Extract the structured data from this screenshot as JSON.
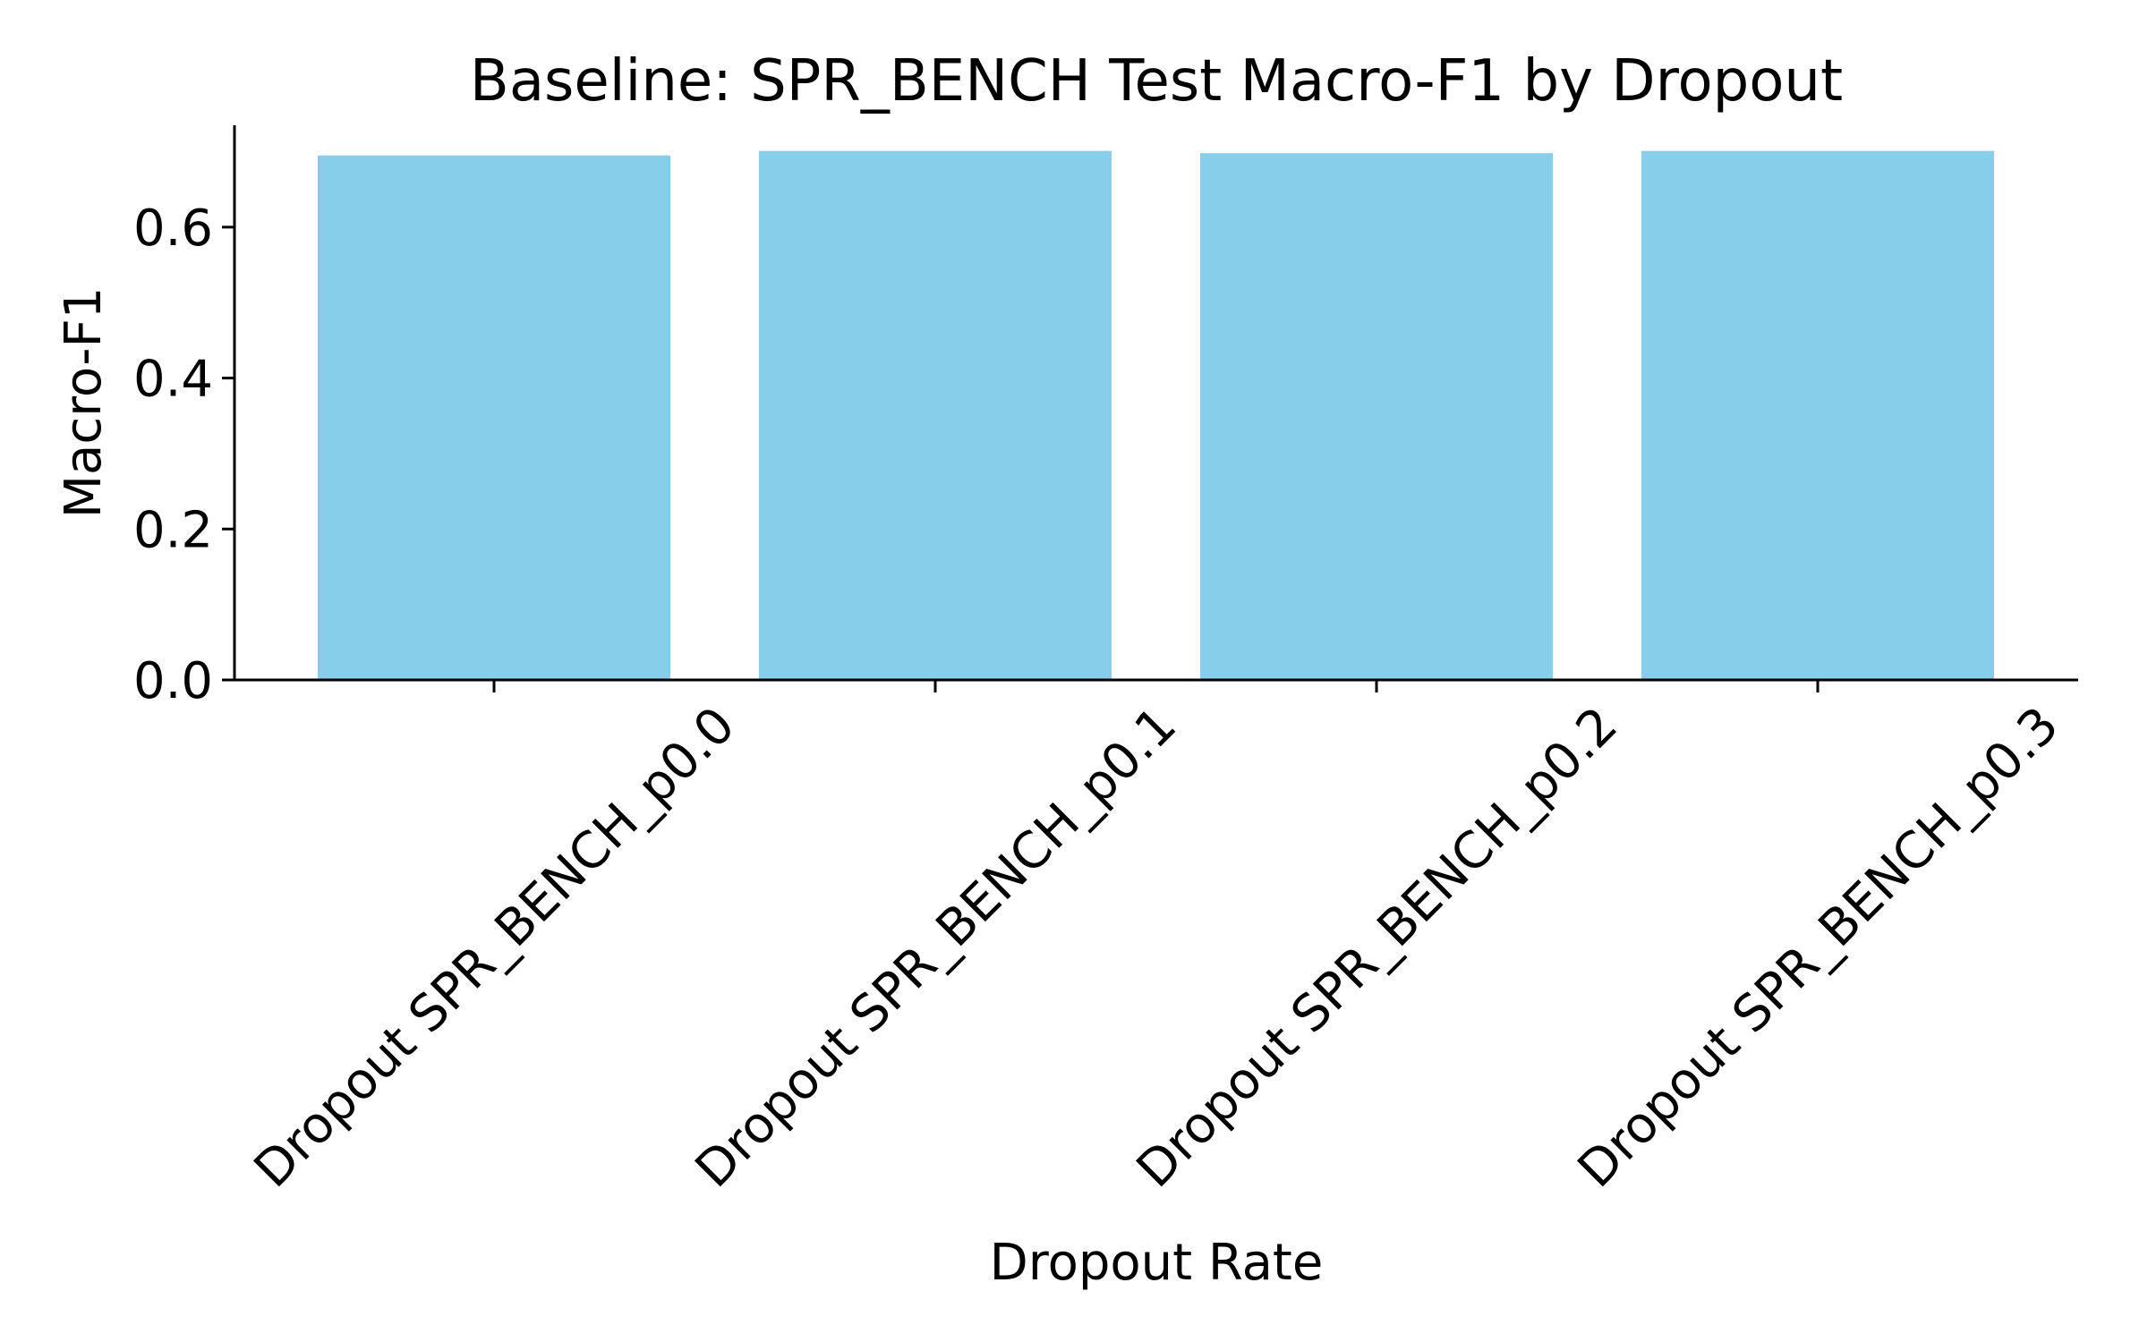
{
  "chart_data": {
    "type": "bar",
    "title": "Baseline: SPR_BENCH Test Macro-F1 by Dropout",
    "xlabel": "Dropout Rate",
    "ylabel": "Macro-F1",
    "categories": [
      "Dropout SPR_BENCH_p0.0",
      "Dropout SPR_BENCH_p0.1",
      "Dropout SPR_BENCH_p0.2",
      "Dropout SPR_BENCH_p0.3"
    ],
    "values": [
      0.695,
      0.701,
      0.698,
      0.701
    ],
    "ylim": [
      0,
      0.735
    ],
    "yticks": [
      0.0,
      0.2,
      0.4,
      0.6
    ],
    "ytick_labels": [
      "0.0",
      "0.2",
      "0.4",
      "0.6"
    ],
    "bar_color": "#87CEEB",
    "grid": false,
    "legend": "none"
  }
}
